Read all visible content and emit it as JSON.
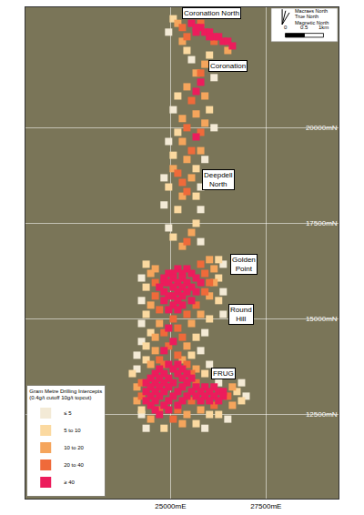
{
  "chart_data": {
    "type": "scatter",
    "xlim": [
      21200,
      29400
    ],
    "ylim": [
      10300,
      23150
    ],
    "xticks": [
      {
        "value": 25000,
        "label": "25000mE"
      },
      {
        "value": 27500,
        "label": "27500mE"
      }
    ],
    "yticks": [
      {
        "value": 12500,
        "label": "12500mN"
      },
      {
        "value": 15000,
        "label": "15000mN"
      },
      {
        "value": 17500,
        "label": "17500mN"
      },
      {
        "value": 20000,
        "label": "20000mN"
      }
    ],
    "grid": true,
    "legend": "lower left",
    "legend_title": [
      "Gram Metre Drilling Intercepts",
      "(0.4g/t cutoff 10g/t topcut)"
    ],
    "series": [
      {
        "name": "≤ 5",
        "color": "#f3ead6",
        "marker": "square",
        "x": [
          24950,
          25550,
          26140,
          25070,
          26140,
          24950,
          25900,
          24830,
          25790,
          24830,
          25790,
          24950,
          25790,
          26380,
          24240,
          26380,
          24240,
          26380,
          24240,
          25900,
          24240,
          25790,
          24120,
          26020,
          24120,
          26260,
          24240,
          24360,
          25900,
          26500,
          26980,
          26860
        ],
        "y": [
          22500,
          21780,
          21310,
          20470,
          20000,
          19640,
          19170,
          18690,
          18450,
          17980,
          17860,
          17380,
          17020,
          16430,
          16070,
          15710,
          15480,
          15120,
          14880,
          14640,
          14410,
          14170,
          14050,
          13810,
          13690,
          13330,
          12500,
          12140,
          12140,
          12380,
          12980,
          13330
        ]
      },
      {
        "name": "5 to 10",
        "color": "#fbd9a0",
        "marker": "square",
        "x": [
          25070,
          25430,
          26020,
          25190,
          26020,
          25190,
          25070,
          25670,
          24950,
          25670,
          25190,
          25670,
          25070,
          26260,
          24360,
          26260,
          24360,
          26260,
          24360,
          26020,
          24480,
          25670,
          24360,
          25550,
          24360,
          25900,
          24000,
          24240,
          26020,
          24830,
          25670,
          26740,
          26860,
          26260
        ],
        "y": [
          22850,
          22020,
          21900,
          20830,
          20470,
          19880,
          19280,
          18930,
          18450,
          18210,
          17860,
          17500,
          17140,
          16550,
          16430,
          16070,
          15830,
          15480,
          15120,
          15000,
          14640,
          14520,
          14290,
          14050,
          13930,
          13570,
          13570,
          12620,
          12500,
          12140,
          12260,
          13100,
          12860,
          12500
        ]
      },
      {
        "name": "10 to 20",
        "color": "#f5a55c",
        "marker": "square",
        "x": [
          25190,
          25310,
          26500,
          25900,
          25670,
          25430,
          25900,
          25670,
          25310,
          25900,
          25310,
          25790,
          25430,
          25070,
          25550,
          25310,
          25550,
          25310,
          26020,
          26140,
          24480,
          26140,
          24600,
          26020,
          24480,
          25790,
          24710,
          25550,
          24600,
          25430,
          24600,
          25310,
          24480,
          25670,
          24120,
          24120,
          25790,
          25430,
          24480,
          26620,
          26620,
          25310
        ],
        "y": [
          22730,
          22260,
          22020,
          21660,
          21430,
          21070,
          20830,
          20360,
          20240,
          20120,
          19640,
          19400,
          19170,
          18930,
          18690,
          18210,
          17260,
          16900,
          16550,
          16310,
          16190,
          15950,
          16310,
          15600,
          15360,
          15120,
          14880,
          14880,
          14520,
          14290,
          14170,
          13930,
          13810,
          13690,
          13220,
          12860,
          12620,
          12500,
          12380,
          13220,
          12740,
          12260
        ]
      },
      {
        "name": "20 to 40",
        "color": "#ef6a3a",
        "marker": "square",
        "x": [
          25310,
          25430,
          26140,
          25790,
          25790,
          25550,
          25430,
          25790,
          25550,
          25190,
          25310,
          25430,
          25430,
          25790,
          25900,
          26020,
          24600,
          25900,
          24600,
          25670,
          24710,
          25430,
          25070,
          25190,
          24830,
          25310,
          24950,
          25190,
          24710,
          24830,
          25430,
          25550,
          24240,
          25670,
          24240,
          25550,
          24710,
          25190,
          25070,
          26500,
          26140
        ],
        "y": [
          22620,
          22380,
          22260,
          22730,
          21430,
          20710,
          20000,
          19880,
          19400,
          18810,
          18570,
          18330,
          17020,
          16430,
          16190,
          15950,
          15950,
          15710,
          15600,
          15360,
          15240,
          15120,
          15000,
          14760,
          14640,
          14520,
          14290,
          14050,
          13930,
          13810,
          13810,
          13570,
          13330,
          13330,
          12980,
          12860,
          12620,
          12620,
          12380,
          12980,
          12740
        ]
      },
      {
        "name": "≥ 40",
        "color": "#ec1c5c",
        "marker": "square",
        "x": [
          25550,
          25670,
          25790,
          25900,
          26020,
          26140,
          26260,
          26380,
          26500,
          26620,
          25670,
          26020,
          25790,
          25670,
          25670,
          25190,
          25430,
          24950,
          25070,
          25310,
          25550,
          24830,
          25070,
          25310,
          25670,
          24830,
          24950,
          25190,
          25430,
          25790,
          24710,
          25070,
          25310,
          25550,
          24830,
          25190,
          25430,
          25670,
          24950,
          25070,
          25310,
          24830,
          25190,
          25550,
          25070,
          25310,
          24950,
          25190,
          24950,
          25070,
          24830,
          24950,
          25190,
          24710,
          25070,
          25310,
          24600,
          24830,
          25190,
          25430,
          24480,
          24710,
          24950,
          25310,
          25550,
          24360,
          24600,
          24830,
          25070,
          25430,
          24480,
          24710,
          24950,
          25310,
          25670,
          25900,
          26140,
          24360,
          24600,
          24830,
          25190,
          25550,
          25790,
          26020,
          26260,
          26380,
          24480,
          24710,
          25070,
          25430,
          25670,
          25900,
          26140,
          26380,
          24360,
          24600,
          24950,
          25310,
          25790,
          26020,
          26260,
          24480,
          24830,
          25190,
          24600,
          24950,
          24710
        ],
        "y": [
          22730,
          22620,
          22620,
          22500,
          22500,
          22380,
          22380,
          22260,
          22260,
          22140,
          22500,
          22380,
          21190,
          20950,
          19760,
          16310,
          16310,
          16190,
          16190,
          16190,
          16190,
          16070,
          16070,
          16070,
          16070,
          15950,
          15950,
          15950,
          15950,
          15950,
          15830,
          15830,
          15830,
          15830,
          15710,
          15710,
          15710,
          15710,
          15600,
          15600,
          15600,
          15480,
          15480,
          15480,
          15360,
          15360,
          15240,
          15240,
          14760,
          14410,
          14170,
          13810,
          13810,
          13690,
          13690,
          13690,
          13570,
          13570,
          13570,
          13570,
          13450,
          13450,
          13450,
          13450,
          13450,
          13330,
          13330,
          13330,
          13330,
          13330,
          13220,
          13220,
          13220,
          13220,
          13220,
          13220,
          13220,
          13100,
          13100,
          13100,
          13100,
          13100,
          13100,
          13100,
          13100,
          13100,
          12980,
          12980,
          12980,
          12980,
          12980,
          12980,
          12980,
          12980,
          12860,
          12860,
          12860,
          12860,
          12860,
          12860,
          12860,
          12740,
          12740,
          12740,
          12620,
          12620,
          12500
        ]
      }
    ],
    "annotations": [
      {
        "text": [
          "Coronation North"
        ],
        "x": 26070,
        "y": 22990
      },
      {
        "text": [
          "Coronation"
        ],
        "x": 26500,
        "y": 21620
      },
      {
        "text": [
          "Deepdell",
          "North"
        ],
        "x": 26260,
        "y": 18640
      },
      {
        "text": [
          "Golden",
          "Point"
        ],
        "x": 26930,
        "y": 16430
      },
      {
        "text": [
          "Round",
          "Hill"
        ],
        "x": 26860,
        "y": 15120
      },
      {
        "text": [
          "FRUG"
        ],
        "x": 26380,
        "y": 13570
      }
    ],
    "north_arrow": [
      "Macraes North",
      "True North",
      "Magnetic North"
    ],
    "scale_bar": [
      {
        "value": 0,
        "label": "0"
      },
      {
        "value": 500,
        "label": "0.5"
      },
      {
        "value": 1000,
        "label": "1km"
      }
    ]
  }
}
